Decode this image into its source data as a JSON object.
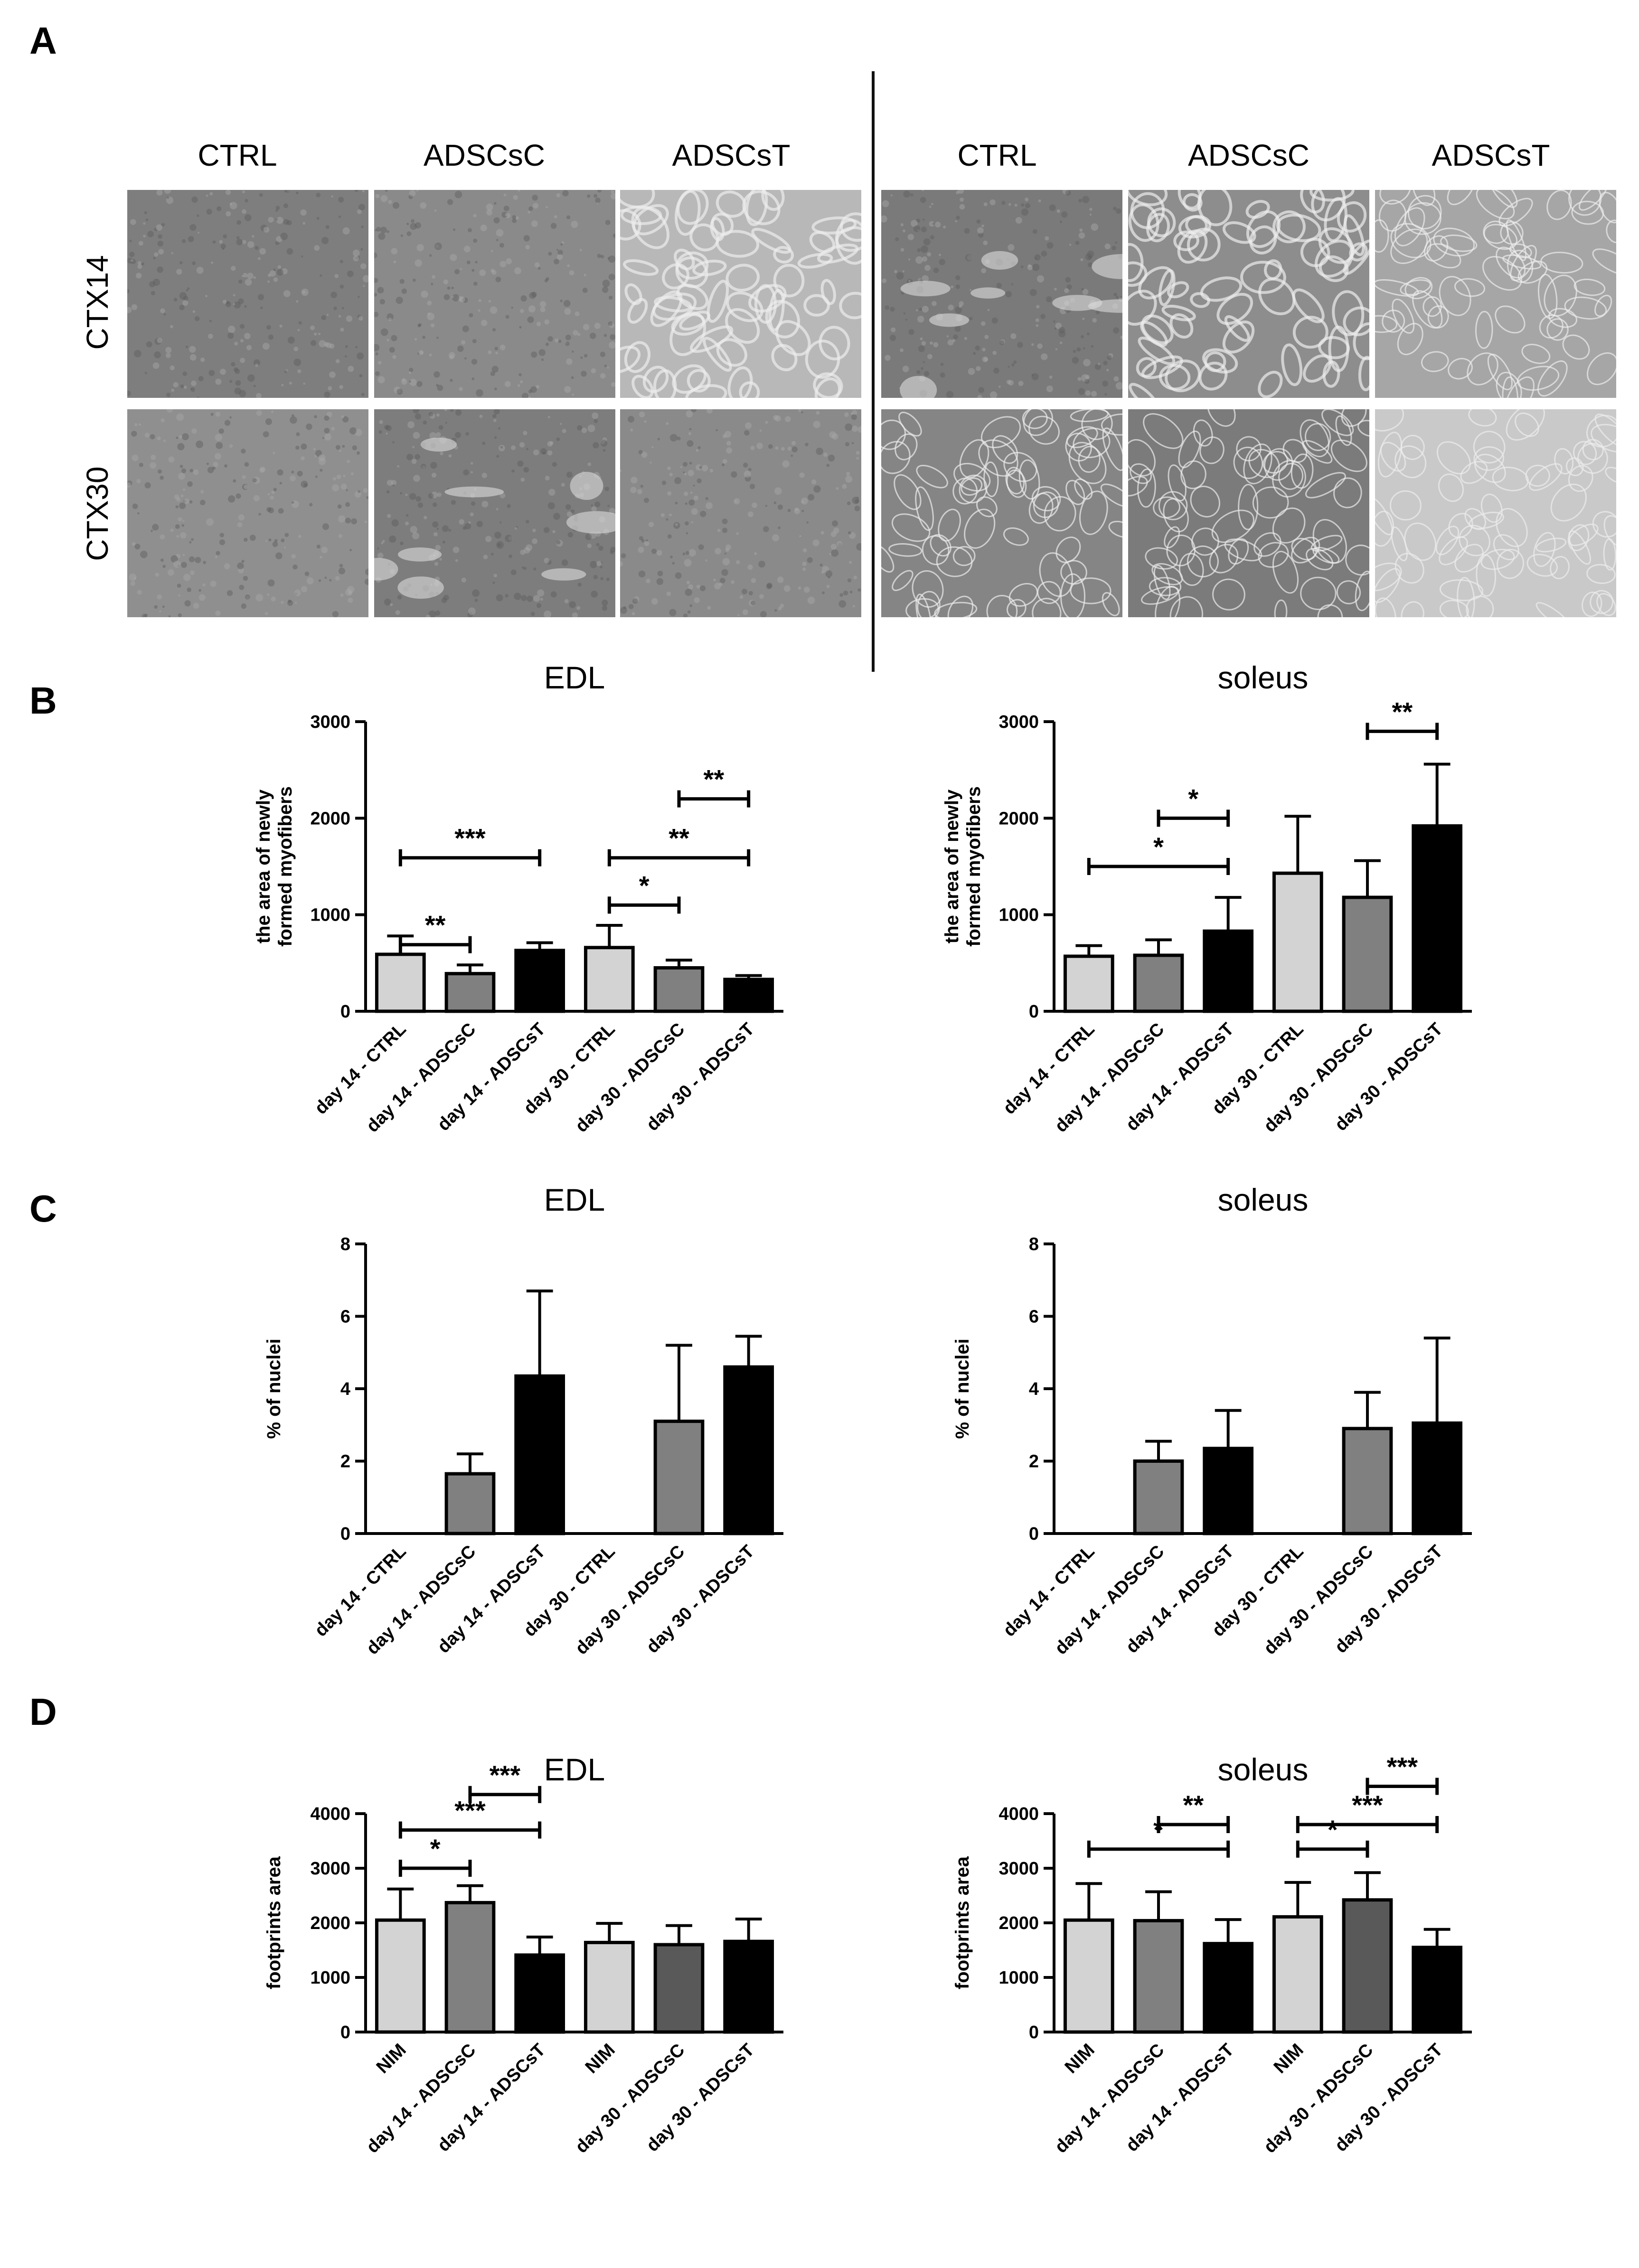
{
  "panels": {
    "A": "A",
    "B": "B",
    "C": "C",
    "D": "D"
  },
  "panel_a": {
    "col_labels_left": [
      "CTRL",
      "ADSCsC",
      "ADSCsT"
    ],
    "col_labels_right": [
      "CTRL",
      "ADSCsC",
      "ADSCsT"
    ],
    "row_labels": [
      "CTX14",
      "CTX30"
    ],
    "tiles": [
      {
        "tone": "#7e7e7e",
        "pattern": "fine"
      },
      {
        "tone": "#8a8a8a",
        "pattern": "fine"
      },
      {
        "tone": "#b8b8b8",
        "pattern": "lace"
      },
      {
        "tone": "#7a7a7a",
        "pattern": "blotch"
      },
      {
        "tone": "#8d8d8d",
        "pattern": "lace"
      },
      {
        "tone": "#a6a6a6",
        "pattern": "fiber"
      },
      {
        "tone": "#8f8f8f",
        "pattern": "fine"
      },
      {
        "tone": "#7d7d7d",
        "pattern": "blotch"
      },
      {
        "tone": "#8a8a8a",
        "pattern": "fine"
      },
      {
        "tone": "#858585",
        "pattern": "fiber"
      },
      {
        "tone": "#7b7b7b",
        "pattern": "fiber"
      },
      {
        "tone": "#c9c9c9",
        "pattern": "fiber"
      }
    ]
  },
  "chart_data": [
    {
      "id": "B-EDL",
      "type": "bar",
      "title": "EDL",
      "ylabel": "the area of newly formed myofibers",
      "ylim": [
        0,
        3000
      ],
      "yticks": [
        0,
        1000,
        2000,
        3000
      ],
      "categories": [
        "day 14 - CTRL",
        "day 14 - ADSCsC",
        "day 14 - ADSCsT",
        "day 30 - CTRL",
        "day 30 - ADSCsC",
        "day 30 - ADSCsT"
      ],
      "values": [
        590,
        390,
        630,
        660,
        450,
        330
      ],
      "errors": [
        190,
        90,
        80,
        230,
        80,
        40
      ],
      "colors": [
        "#d3d3d3",
        "#808080",
        "#000000",
        "#d3d3d3",
        "#808080",
        "#000000"
      ],
      "significance": [
        {
          "from": 0,
          "to": 1,
          "y": 690,
          "label": "**"
        },
        {
          "from": 0,
          "to": 2,
          "y": 1590,
          "label": "***"
        },
        {
          "from": 3,
          "to": 4,
          "y": 1100,
          "label": "*"
        },
        {
          "from": 3,
          "to": 5,
          "y": 1590,
          "label": "**"
        },
        {
          "from": 4,
          "to": 5,
          "y": 2200,
          "label": "**"
        }
      ]
    },
    {
      "id": "B-soleus",
      "type": "bar",
      "title": "soleus",
      "ylabel": "the area of newly formed myofibers",
      "ylim": [
        0,
        3000
      ],
      "yticks": [
        0,
        1000,
        2000,
        3000
      ],
      "categories": [
        "day 14 - CTRL",
        "day 14 - ADSCsC",
        "day 14 - ADSCsT",
        "day 30 - CTRL",
        "day 30 - ADSCsC",
        "day 30 - ADSCsT"
      ],
      "values": [
        570,
        580,
        830,
        1430,
        1180,
        1920
      ],
      "errors": [
        110,
        160,
        350,
        590,
        380,
        640
      ],
      "colors": [
        "#d3d3d3",
        "#808080",
        "#000000",
        "#d3d3d3",
        "#808080",
        "#000000"
      ],
      "significance": [
        {
          "from": 0,
          "to": 2,
          "y": 1500,
          "label": "*"
        },
        {
          "from": 1,
          "to": 2,
          "y": 2000,
          "label": "*"
        },
        {
          "from": 4,
          "to": 5,
          "y": 2900,
          "label": "**"
        }
      ]
    },
    {
      "id": "C-EDL",
      "type": "bar",
      "title": "EDL",
      "ylabel": "% of nuclei",
      "ylim": [
        0,
        8
      ],
      "yticks": [
        0,
        2,
        4,
        6,
        8
      ],
      "categories": [
        "day 14 - CTRL",
        "day 14 - ADSCsC",
        "day 14 - ADSCsT",
        "day 30 - CTRL",
        "day 30 - ADSCsC",
        "day 30 - ADSCsT"
      ],
      "values": [
        0,
        1.65,
        4.35,
        0,
        3.1,
        4.6
      ],
      "errors": [
        0,
        0.55,
        2.35,
        0,
        2.1,
        0.85
      ],
      "colors": [
        "#d3d3d3",
        "#808080",
        "#000000",
        "#d3d3d3",
        "#808080",
        "#000000"
      ],
      "significance": []
    },
    {
      "id": "C-soleus",
      "type": "bar",
      "title": "soleus",
      "ylabel": "% of nuclei",
      "ylim": [
        0,
        8
      ],
      "yticks": [
        0,
        2,
        4,
        6,
        8
      ],
      "categories": [
        "day 14 - CTRL",
        "day 14 - ADSCsC",
        "day 14 - ADSCsT",
        "day 30 - CTRL",
        "day 30 - ADSCsC",
        "day 30 - ADSCsT"
      ],
      "values": [
        0,
        2.0,
        2.35,
        0,
        2.9,
        3.05
      ],
      "errors": [
        0,
        0.55,
        1.05,
        0,
        1.0,
        2.35
      ],
      "colors": [
        "#d3d3d3",
        "#808080",
        "#000000",
        "#d3d3d3",
        "#808080",
        "#000000"
      ],
      "significance": []
    },
    {
      "id": "D-EDL",
      "type": "bar",
      "title": "EDL",
      "ylabel": "footprints area",
      "ylim": [
        0,
        4000
      ],
      "yticks": [
        0,
        1000,
        2000,
        3000,
        4000
      ],
      "categories": [
        "NIM",
        "day 14 - ADSCsC",
        "day 14 - ADSCsT",
        "NIM",
        "day 30 - ADSCsC",
        "day 30 - ADSCsT"
      ],
      "values": [
        2050,
        2370,
        1410,
        1640,
        1600,
        1660
      ],
      "errors": [
        570,
        310,
        330,
        350,
        350,
        410
      ],
      "colors": [
        "#d3d3d3",
        "#808080",
        "#000000",
        "#d3d3d3",
        "#595959",
        "#000000"
      ],
      "significance": [
        {
          "from": 0,
          "to": 1,
          "y": 3000,
          "label": "*"
        },
        {
          "from": 0,
          "to": 2,
          "y": 3700,
          "label": "***"
        },
        {
          "from": 1,
          "to": 2,
          "y": 4350,
          "label": "***"
        }
      ]
    },
    {
      "id": "D-soleus",
      "type": "bar",
      "title": "soleus",
      "ylabel": "footprints area",
      "ylim": [
        0,
        4000
      ],
      "yticks": [
        0,
        1000,
        2000,
        3000,
        4000
      ],
      "categories": [
        "NIM",
        "day 14 - ADSCsC",
        "day 14 - ADSCsT",
        "NIM",
        "day 30 - ADSCsC",
        "day 30 - ADSCsT"
      ],
      "values": [
        2050,
        2040,
        1620,
        2110,
        2420,
        1550
      ],
      "errors": [
        670,
        530,
        440,
        630,
        500,
        330
      ],
      "colors": [
        "#d3d3d3",
        "#808080",
        "#000000",
        "#d3d3d3",
        "#595959",
        "#000000"
      ],
      "significance": [
        {
          "from": 0,
          "to": 2,
          "y": 3350,
          "label": "*"
        },
        {
          "from": 1,
          "to": 2,
          "y": 3800,
          "label": "**"
        },
        {
          "from": 3,
          "to": 4,
          "y": 3350,
          "label": "*"
        },
        {
          "from": 3,
          "to": 5,
          "y": 3800,
          "label": "***"
        },
        {
          "from": 4,
          "to": 5,
          "y": 4500,
          "label": "***"
        }
      ]
    }
  ]
}
